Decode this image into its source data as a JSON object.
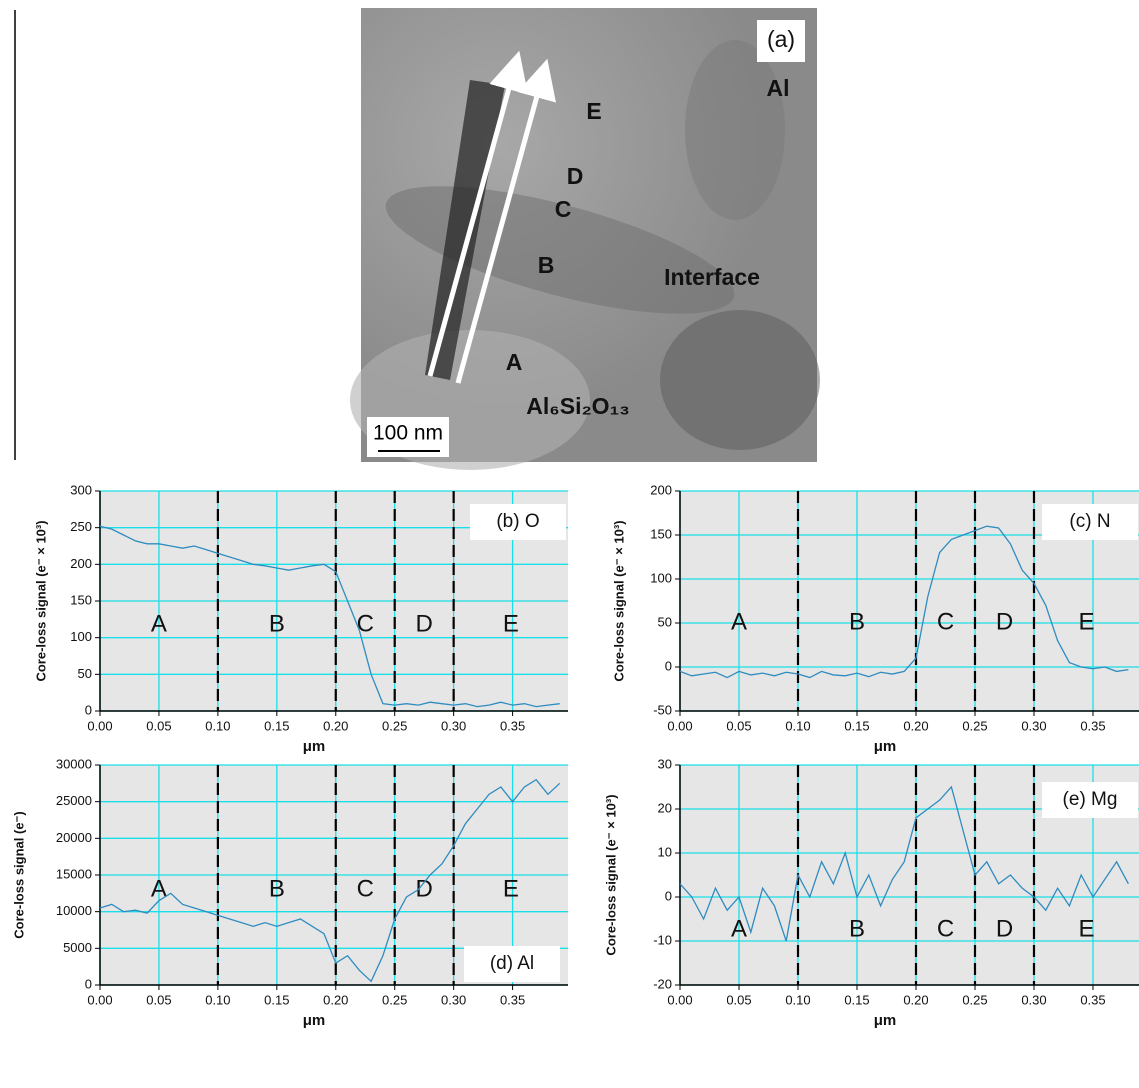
{
  "image": {
    "panel_label": "(a)",
    "labels": [
      "Al",
      "E",
      "D",
      "C",
      "B",
      "Interface",
      "A",
      "Al₆Si₂O₁₃"
    ],
    "scale_bar": "100 nm"
  },
  "chart_data": [
    {
      "type": "line",
      "annotation": "(b) O",
      "ylabel": "Core-loss signal (e⁻ × 10³)",
      "xlabel": "μm",
      "xlim": [
        0,
        0.397
      ],
      "ylim": [
        0,
        300
      ],
      "xticks": [
        {
          "value": 0,
          "label": "0.00"
        },
        0.05,
        {
          "value": 0.1,
          "label": "0.10"
        },
        0.15,
        {
          "value": 0.2,
          "label": "0.20"
        },
        0.25,
        {
          "value": 0.3,
          "label": "0.30"
        },
        0.35
      ],
      "yticks": [
        0,
        50,
        100,
        150,
        200,
        250,
        300
      ],
      "grid": true,
      "vlines": [
        0.1,
        0.2,
        0.25,
        0.3
      ],
      "regions": [
        "A",
        "B",
        "C",
        "D",
        "E"
      ],
      "x": [
        0,
        0.01,
        0.02,
        0.03,
        0.04,
        0.05,
        0.06,
        0.07,
        0.08,
        0.09,
        0.1,
        0.11,
        0.12,
        0.13,
        0.14,
        0.15,
        0.16,
        0.17,
        0.18,
        0.19,
        0.2,
        0.21,
        0.22,
        0.23,
        0.24,
        0.25,
        0.26,
        0.27,
        0.28,
        0.29,
        0.3,
        0.31,
        0.32,
        0.33,
        0.34,
        0.35,
        0.36,
        0.37,
        0.38,
        0.39
      ],
      "series": [
        {
          "color": "#2f8cc0",
          "values": [
            252,
            248,
            240,
            232,
            228,
            228,
            225,
            222,
            225,
            220,
            215,
            210,
            205,
            200,
            198,
            195,
            192,
            195,
            198,
            200,
            190,
            150,
            110,
            50,
            10,
            8,
            10,
            8,
            12,
            10,
            8,
            10,
            6,
            8,
            12,
            8,
            10,
            6,
            8,
            10
          ]
        }
      ]
    },
    {
      "type": "line",
      "annotation": "(c) N",
      "ylabel": "Core-loss signal (e⁻ × 10³)",
      "xlabel": "μm",
      "xlim": [
        0,
        0.389
      ],
      "ylim": [
        -50,
        200
      ],
      "xticks": [
        {
          "value": 0,
          "label": "0.00"
        },
        0.05,
        {
          "value": 0.1,
          "label": "0.10"
        },
        0.15,
        {
          "value": 0.2,
          "label": "0.20"
        },
        0.25,
        {
          "value": 0.3,
          "label": "0.30"
        },
        0.35
      ],
      "yticks": [
        -50,
        0,
        50,
        100,
        150,
        200
      ],
      "grid": true,
      "vlines": [
        0.1,
        0.2,
        0.25,
        0.3
      ],
      "regions": [
        "A",
        "B",
        "C",
        "D",
        "E"
      ],
      "x": [
        0,
        0.01,
        0.02,
        0.03,
        0.04,
        0.05,
        0.06,
        0.07,
        0.08,
        0.09,
        0.1,
        0.11,
        0.12,
        0.13,
        0.14,
        0.15,
        0.16,
        0.17,
        0.18,
        0.19,
        0.2,
        0.21,
        0.22,
        0.23,
        0.24,
        0.25,
        0.26,
        0.27,
        0.28,
        0.29,
        0.3,
        0.31,
        0.32,
        0.33,
        0.34,
        0.35,
        0.36,
        0.37,
        0.38
      ],
      "series": [
        {
          "color": "#2f8cc0",
          "values": [
            -5,
            -10,
            -8,
            -6,
            -12,
            -5,
            -9,
            -7,
            -10,
            -6,
            -8,
            -12,
            -5,
            -9,
            -10,
            -7,
            -11,
            -6,
            -8,
            -5,
            10,
            80,
            130,
            145,
            150,
            155,
            160,
            158,
            140,
            110,
            95,
            70,
            30,
            5,
            0,
            -2,
            0,
            -5,
            -3
          ]
        }
      ]
    },
    {
      "type": "line",
      "annotation": "(d) Al",
      "ylabel": "Core-loss signal (e⁻)",
      "xlabel": "μm",
      "xlim": [
        0,
        0.397
      ],
      "ylim": [
        0,
        30000
      ],
      "xticks": [
        {
          "value": 0,
          "label": "0.00"
        },
        0.05,
        {
          "value": 0.1,
          "label": "0.10"
        },
        0.15,
        {
          "value": 0.2,
          "label": "0.20"
        },
        0.25,
        {
          "value": 0.3,
          "label": "0.30"
        },
        0.35
      ],
      "yticks": [
        0,
        5000,
        10000,
        15000,
        20000,
        25000,
        30000
      ],
      "grid": true,
      "vlines": [
        0.1,
        0.2,
        0.25,
        0.3
      ],
      "regions": [
        "A",
        "B",
        "C",
        "D",
        "E"
      ],
      "x": [
        0,
        0.01,
        0.02,
        0.03,
        0.04,
        0.05,
        0.06,
        0.07,
        0.08,
        0.09,
        0.1,
        0.11,
        0.12,
        0.13,
        0.14,
        0.15,
        0.16,
        0.17,
        0.18,
        0.19,
        0.2,
        0.21,
        0.22,
        0.23,
        0.24,
        0.25,
        0.26,
        0.27,
        0.28,
        0.29,
        0.3,
        0.31,
        0.32,
        0.33,
        0.34,
        0.35,
        0.36,
        0.37,
        0.38,
        0.39
      ],
      "series": [
        {
          "color": "#2f8cc0",
          "values": [
            10500,
            11000,
            10000,
            10200,
            9800,
            11500,
            12500,
            11000,
            10500,
            10000,
            9500,
            9000,
            8500,
            8000,
            8500,
            8000,
            8500,
            9000,
            8000,
            7000,
            3000,
            4000,
            2000,
            500,
            4000,
            9000,
            12000,
            13000,
            15000,
            16500,
            19000,
            22000,
            24000,
            26000,
            27000,
            25000,
            27000,
            28000,
            26000,
            27500
          ]
        }
      ]
    },
    {
      "type": "line",
      "annotation": "(e) Mg",
      "ylabel": "Core-loss signal (e⁻ × 10³)",
      "xlabel": "μm",
      "xlim": [
        0,
        0.389
      ],
      "ylim": [
        -20,
        30
      ],
      "xticks": [
        {
          "value": 0,
          "label": "0.00"
        },
        0.05,
        {
          "value": 0.1,
          "label": "0.10"
        },
        0.15,
        {
          "value": 0.2,
          "label": "0.20"
        },
        0.25,
        {
          "value": 0.3,
          "label": "0.30"
        },
        0.35
      ],
      "yticks": [
        -20,
        -10,
        0,
        10,
        20,
        30
      ],
      "grid": true,
      "vlines": [
        0.1,
        0.2,
        0.25,
        0.3
      ],
      "regions": [
        "A",
        "B",
        "C",
        "D",
        "E"
      ],
      "x": [
        0,
        0.01,
        0.02,
        0.03,
        0.04,
        0.05,
        0.06,
        0.07,
        0.08,
        0.09,
        0.1,
        0.11,
        0.12,
        0.13,
        0.14,
        0.15,
        0.16,
        0.17,
        0.18,
        0.19,
        0.2,
        0.21,
        0.22,
        0.23,
        0.24,
        0.25,
        0.26,
        0.27,
        0.28,
        0.29,
        0.3,
        0.31,
        0.32,
        0.33,
        0.34,
        0.35,
        0.36,
        0.37,
        0.38
      ],
      "series": [
        {
          "color": "#2f8cc0",
          "values": [
            3,
            0,
            -5,
            2,
            -3,
            0,
            -8,
            2,
            -2,
            -10,
            5,
            0,
            8,
            3,
            10,
            0,
            5,
            -2,
            4,
            8,
            18,
            20,
            22,
            25,
            15,
            5,
            8,
            3,
            5,
            2,
            0,
            -3,
            2,
            -2,
            5,
            0,
            4,
            8,
            3
          ]
        }
      ]
    }
  ]
}
